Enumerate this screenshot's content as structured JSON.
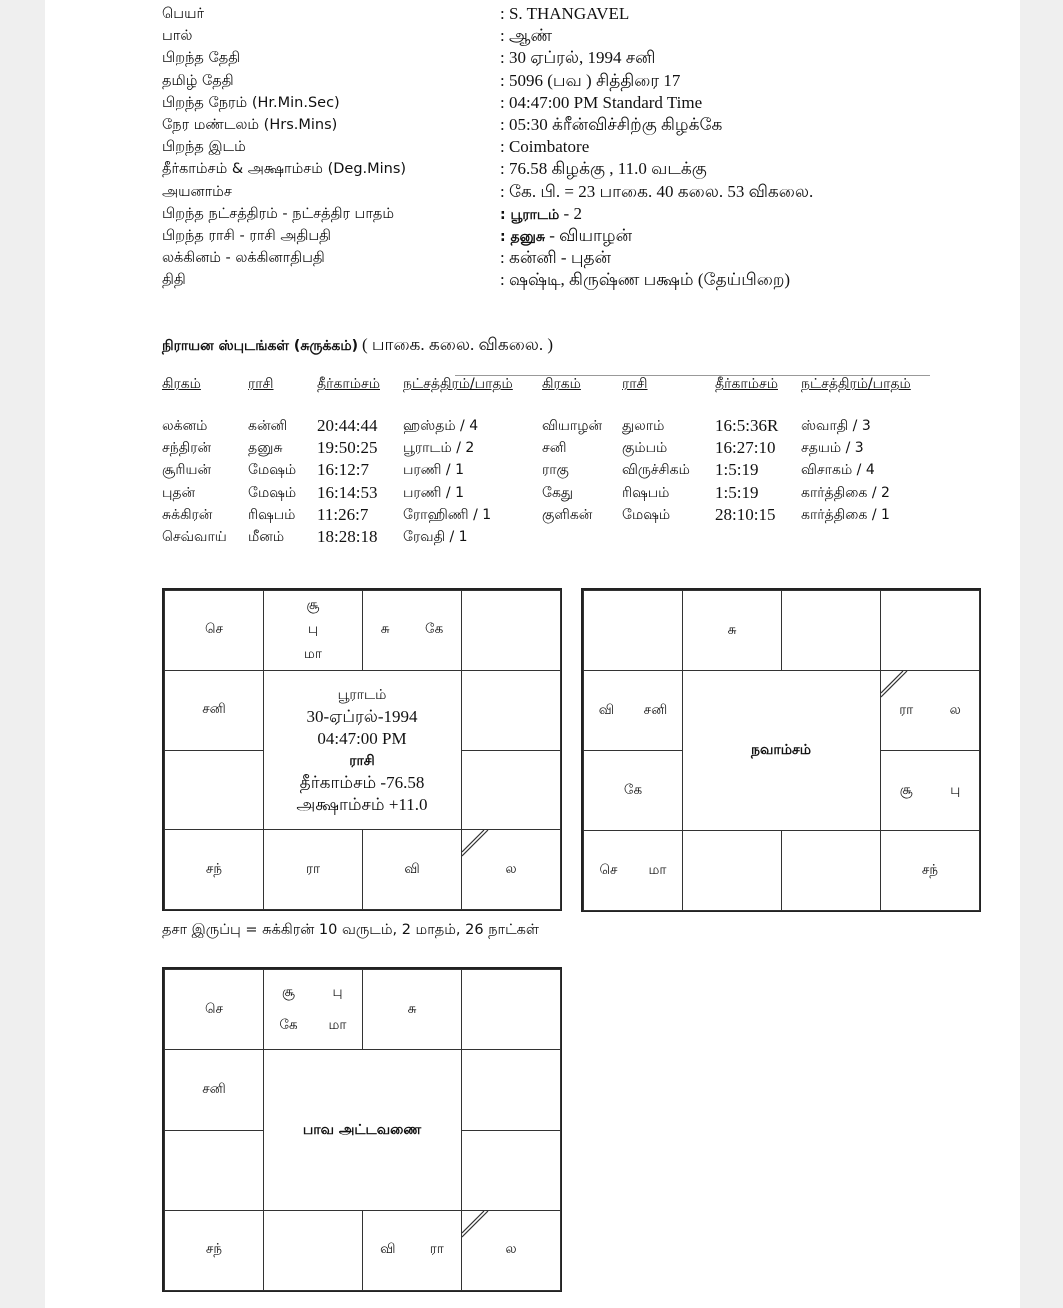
{
  "details": [
    {
      "label": "பெயர்",
      "value": ": S. THANGAVEL"
    },
    {
      "label": "பால்",
      "value": ": ஆண்"
    },
    {
      "label": "பிறந்த தேதி",
      "value": ": 30 ஏப்ரல், 1994  சனி"
    },
    {
      "label": "தமிழ் தேதி",
      "value": ": 5096 (பவ )  சித்திரை  17"
    },
    {
      "label": "பிறந்த நேரம் (Hr.Min.Sec)",
      "value": ": 04:47:00 PM Standard Time"
    },
    {
      "label": "நேர மண்டலம் (Hrs.Mins)",
      "value": ": 05:30 க்ரீன்விச்சிற்கு கிழக்கே"
    },
    {
      "label": "பிறந்த இடம்",
      "value": ": Coimbatore"
    },
    {
      "label": "தீர்காம்சம் & அக்ஷாம்சம் (Deg.Mins)",
      "value": ": 76.58 கிழக்கு , 11.0 வடக்கு"
    },
    {
      "label": "அயனாம்ச",
      "value": ": கே. பி. = 23 பாகை. 40 கலை. 53 விகலை."
    },
    {
      "label": "பிறந்த நட்சத்திரம் - நட்சத்திர பாதம்",
      "value_bold": ": பூராடம்",
      "value": " -  2"
    },
    {
      "label": "பிறந்த ராசி - ராசி அதிபதி",
      "value_bold": ": தனுசு",
      "value": " - வியாழன்"
    },
    {
      "label": "லக்கினம் - லக்கினாதிபதி",
      "value": ": கன்னி - புதன்"
    },
    {
      "label": "திதி",
      "value": ": ஷஷ்டி,  கிருஷ்ண  பக்ஷம்  (தேய்பிறை)"
    }
  ],
  "sputa": {
    "title": "நிராயன ஸ்புடங்கள் (சுருக்கம்)",
    "subtitle": "( பாகை. கலை. விகலை. )",
    "headers": [
      "கிரகம்",
      "ராசி",
      "தீர்காம்சம்",
      "நட்சத்திரம்/பாதம்",
      "கிரகம்",
      "ராசி",
      "தீர்காம்சம்",
      "நட்சத்திரம்/பாதம்"
    ],
    "rows": [
      [
        "லக்னம்",
        "கன்னி",
        "20:44:44",
        "ஹஸ்தம் / 4",
        "வியாழன்",
        "துலாம்",
        "16:5:36R",
        "ஸ்வாதி / 3"
      ],
      [
        "சந்திரன்",
        "தனுசு",
        "19:50:25",
        "பூராடம் / 2",
        "சனி",
        "கும்பம்",
        "16:27:10",
        "சதயம் / 3"
      ],
      [
        "சூரியன்",
        "மேஷம்",
        "16:12:7",
        "பரணி / 1",
        "ராகு",
        "விருச்சிகம்",
        "1:5:19",
        "விசாகம் / 4"
      ],
      [
        "புதன்",
        "மேஷம்",
        "16:14:53",
        "பரணி / 1",
        "கேது",
        "ரிஷபம்",
        "1:5:19",
        "கார்த்திகை / 2"
      ],
      [
        "சுக்கிரன்",
        "ரிஷபம்",
        "11:26:7",
        "ரோஹிணி / 1",
        "குளிகன்",
        "மேஷம்",
        "28:10:15",
        "கார்த்திகை / 1"
      ],
      [
        "செவ்வாய்",
        "மீனம்",
        "18:28:18",
        "ரேவதி / 1",
        "",
        "",
        "",
        ""
      ]
    ]
  },
  "dasha": "தசா இருப்பு = சுக்கிரன் 10 வருடம், 2 மாதம், 26 நாட்கள்",
  "charts": [
    {
      "name": "rasi-chart",
      "lagna_sign": "virgo",
      "center": [
        {
          "text": "பூராடம்",
          "style": "t"
        },
        {
          "text": "30-ஏப்ரல்-1994",
          "style": "l"
        },
        {
          "text": "04:47:00 PM",
          "style": "l"
        },
        {
          "text": "ராசி",
          "style": "b"
        },
        {
          "text": "தீர்காம்சம்   -76.58",
          "style": "l"
        },
        {
          "text": "அக்ஷாம்சம்   +11.0",
          "style": "l"
        }
      ],
      "houses": {
        "pisces": [
          "செ"
        ],
        "aries": [
          "சூ",
          "பு",
          "மா"
        ],
        "taurus": [
          "சு",
          "கே"
        ],
        "gemini": [],
        "cancer": [],
        "leo": [],
        "virgo": [
          "ல"
        ],
        "libra": [
          "வி"
        ],
        "scorpio": [
          "ரா"
        ],
        "sagittarius": [
          "சந்"
        ],
        "capricorn": [],
        "aquarius": [
          "சனி"
        ]
      }
    },
    {
      "name": "navamsa-chart",
      "lagna_sign": "cancer",
      "center": [
        {
          "text": "நவாம்சம்",
          "style": "b"
        }
      ],
      "houses": {
        "pisces": [],
        "aries": [
          "சு"
        ],
        "taurus": [],
        "gemini": [],
        "cancer": [
          "ரா",
          "ல"
        ],
        "leo": [
          "சூ",
          "பு"
        ],
        "virgo": [
          "சந்"
        ],
        "libra": [],
        "scorpio": [],
        "sagittarius": [
          "செ",
          "மா"
        ],
        "capricorn": [
          "கே"
        ],
        "aquarius": [
          "வி",
          "சனி"
        ]
      }
    },
    {
      "name": "bhava-chart",
      "lagna_sign": "virgo",
      "center": [
        {
          "text": "பாவ அட்டவணை",
          "style": "b"
        }
      ],
      "houses": {
        "pisces": [
          "செ"
        ],
        "aries": [
          "சூ",
          "பு",
          "கே",
          "மா"
        ],
        "taurus": [
          "சு"
        ],
        "gemini": [],
        "cancer": [],
        "leo": [],
        "virgo": [
          "ல"
        ],
        "libra": [
          "வி",
          "ரா"
        ],
        "scorpio": [],
        "sagittarius": [
          "சந்"
        ],
        "capricorn": [],
        "aquarius": [
          "சனி"
        ]
      }
    }
  ]
}
